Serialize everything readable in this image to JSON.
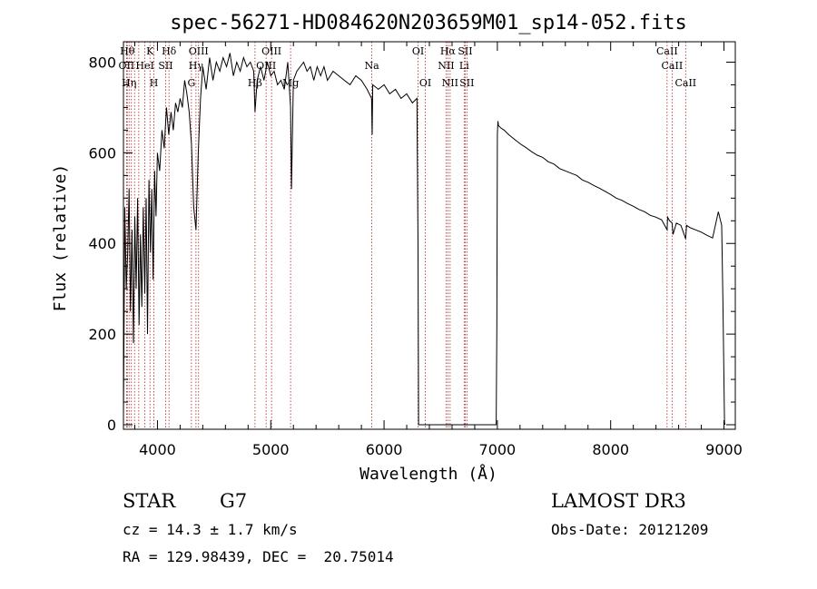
{
  "chart_data": {
    "type": "line",
    "title": "spec-56271-HD084620N203659M01_sp14-052.fits",
    "xlabel": "Wavelength (Å)",
    "ylabel": "Flux (relative)",
    "xlim": [
      3700,
      9100
    ],
    "ylim": [
      -10,
      845
    ],
    "x_ticks": [
      4000,
      5000,
      6000,
      7000,
      8000,
      9000
    ],
    "y_ticks": [
      0,
      200,
      400,
      600,
      800
    ],
    "grid": false,
    "line_color": "#000000",
    "marker_color": "#b22222",
    "series": [
      {
        "name": "flux",
        "x": [
          3700,
          3712,
          3725,
          3738,
          3750,
          3762,
          3775,
          3788,
          3800,
          3812,
          3825,
          3838,
          3850,
          3862,
          3875,
          3888,
          3900,
          3912,
          3925,
          3938,
          3950,
          3962,
          3975,
          3988,
          4000,
          4020,
          4040,
          4060,
          4080,
          4100,
          4120,
          4140,
          4160,
          4180,
          4200,
          4220,
          4240,
          4260,
          4280,
          4300,
          4320,
          4340,
          4360,
          4380,
          4400,
          4430,
          4460,
          4490,
          4520,
          4550,
          4580,
          4610,
          4640,
          4670,
          4700,
          4730,
          4760,
          4790,
          4820,
          4850,
          4861,
          4880,
          4910,
          4940,
          4970,
          5000,
          5030,
          5060,
          5090,
          5120,
          5150,
          5175,
          5183,
          5200,
          5230,
          5260,
          5290,
          5320,
          5350,
          5380,
          5410,
          5440,
          5470,
          5500,
          5550,
          5600,
          5650,
          5700,
          5750,
          5800,
          5850,
          5890,
          5895,
          5900,
          5950,
          6000,
          6050,
          6100,
          6150,
          6200,
          6250,
          6290,
          6300,
          6305,
          6310,
          6320,
          6330,
          6340,
          6360,
          6400,
          6500,
          6600,
          6700,
          6800,
          6900,
          6990,
          6995,
          7000,
          7005,
          7010,
          7030,
          7060,
          7100,
          7150,
          7200,
          7250,
          7300,
          7350,
          7400,
          7450,
          7500,
          7550,
          7600,
          7650,
          7700,
          7750,
          7800,
          7850,
          7900,
          7950,
          8000,
          8050,
          8100,
          8150,
          8200,
          8250,
          8300,
          8350,
          8400,
          8450,
          8498,
          8502,
          8520,
          8542,
          8550,
          8580,
          8620,
          8662,
          8670,
          8700,
          8750,
          8800,
          8850,
          8900,
          8950,
          8980,
          8990,
          9000,
          9005,
          9010
        ],
        "values": [
          20,
          480,
          300,
          380,
          520,
          250,
          430,
          180,
          460,
          300,
          500,
          220,
          420,
          260,
          480,
          290,
          500,
          200,
          540,
          380,
          520,
          320,
          560,
          460,
          600,
          560,
          650,
          610,
          700,
          640,
          690,
          650,
          710,
          690,
          720,
          700,
          760,
          730,
          690,
          620,
          480,
          430,
          600,
          720,
          790,
          740,
          810,
          760,
          800,
          780,
          810,
          790,
          820,
          770,
          800,
          780,
          810,
          790,
          800,
          780,
          690,
          760,
          790,
          760,
          800,
          770,
          780,
          750,
          760,
          740,
          800,
          700,
          520,
          760,
          780,
          790,
          800,
          780,
          790,
          760,
          790,
          770,
          790,
          760,
          780,
          770,
          760,
          750,
          770,
          760,
          740,
          720,
          640,
          750,
          740,
          750,
          730,
          740,
          720,
          730,
          710,
          720,
          390,
          0,
          0,
          0,
          0,
          0,
          0,
          0,
          0,
          0,
          0,
          0,
          0,
          0,
          210,
          640,
          670,
          660,
          655,
          650,
          640,
          630,
          620,
          612,
          603,
          595,
          590,
          580,
          575,
          565,
          560,
          555,
          550,
          540,
          535,
          528,
          522,
          515,
          508,
          500,
          495,
          488,
          482,
          475,
          470,
          462,
          458,
          452,
          430,
          458,
          450,
          445,
          420,
          445,
          440,
          410,
          440,
          435,
          430,
          425,
          418,
          412,
          470,
          440,
          280,
          100,
          5,
          0
        ]
      }
    ],
    "line_markers": [
      {
        "wavelength": 3734,
        "label": "Hθ",
        "row": 1
      },
      {
        "wavelength": 3727,
        "label": "OII",
        "row": 2
      },
      {
        "wavelength": 3750,
        "label": "Hη",
        "row": 3
      },
      {
        "wavelength": 3770,
        "label": "",
        "row": 0
      },
      {
        "wavelength": 3798,
        "label": "",
        "row": 0
      },
      {
        "wavelength": 3835,
        "label": "",
        "row": 0
      },
      {
        "wavelength": 3889,
        "label": "HeI",
        "row": 2
      },
      {
        "wavelength": 3934,
        "label": "K",
        "row": 1
      },
      {
        "wavelength": 3969,
        "label": "H",
        "row": 3
      },
      {
        "wavelength": 4072,
        "label": "SII",
        "row": 2
      },
      {
        "wavelength": 4102,
        "label": "Hδ",
        "row": 1
      },
      {
        "wavelength": 4300,
        "label": "G",
        "row": 3
      },
      {
        "wavelength": 4340,
        "label": "Hγ",
        "row": 2
      },
      {
        "wavelength": 4363,
        "label": "OIII",
        "row": 1
      },
      {
        "wavelength": 4861,
        "label": "Hβ",
        "row": 3
      },
      {
        "wavelength": 4959,
        "label": "OIII",
        "row": 2
      },
      {
        "wavelength": 5007,
        "label": "OIII",
        "row": 1
      },
      {
        "wavelength": 5175,
        "label": "Mg",
        "row": 3
      },
      {
        "wavelength": 5892,
        "label": "Na",
        "row": 2
      },
      {
        "wavelength": 6300,
        "label": "OI",
        "row": 1
      },
      {
        "wavelength": 6364,
        "label": "OI",
        "row": 3
      },
      {
        "wavelength": 6548,
        "label": "NII",
        "row": 2
      },
      {
        "wavelength": 6563,
        "label": "Hα",
        "row": 1
      },
      {
        "wavelength": 6583,
        "label": "NII",
        "row": 3
      },
      {
        "wavelength": 6707,
        "label": "Li",
        "row": 2
      },
      {
        "wavelength": 6716,
        "label": "SII",
        "row": 1
      },
      {
        "wavelength": 6731,
        "label": "SII",
        "row": 3
      },
      {
        "wavelength": 8498,
        "label": "CaII",
        "row": 1
      },
      {
        "wavelength": 8542,
        "label": "CaII",
        "row": 2
      },
      {
        "wavelength": 8662,
        "label": "CaII",
        "row": 3
      }
    ]
  },
  "footer": {
    "object_class": "STAR",
    "subclass": "G7",
    "survey": "LAMOST DR3",
    "redshift": "cz = 14.3 ± 1.7 km/s",
    "obs_date": "Obs-Date: 20121209",
    "coords": "RA = 129.98439, DEC =  20.75014"
  }
}
